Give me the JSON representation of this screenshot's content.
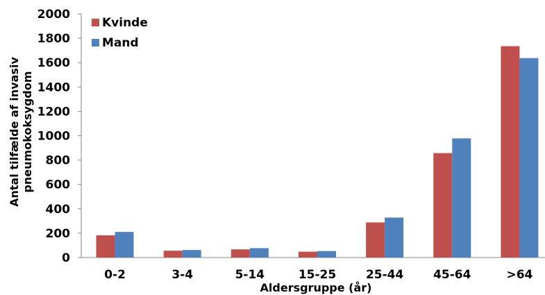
{
  "chart_data": {
    "type": "bar",
    "categories": [
      "0-2",
      "3-4",
      "5-14",
      "15-25",
      "25-44",
      "45-64",
      ">64"
    ],
    "series": [
      {
        "name": "Kvinde",
        "color": "#c0504d",
        "values": [
          182,
          56,
          67,
          48,
          288,
          857,
          1735
        ]
      },
      {
        "name": "Mand",
        "color": "#4f81bd",
        "values": [
          210,
          62,
          77,
          53,
          328,
          978,
          1637
        ]
      }
    ],
    "title": "",
    "xlabel": "Aldersgruppe (år)",
    "ylabel_lines": [
      "Antal tilfælde af invasiv",
      "pneumokoksygdom"
    ],
    "ylim": [
      0,
      2000
    ],
    "yticks": [
      0,
      200,
      400,
      600,
      800,
      1000,
      1200,
      1400,
      1600,
      1800,
      2000
    ],
    "grid": false,
    "legend_position": "top-left"
  }
}
